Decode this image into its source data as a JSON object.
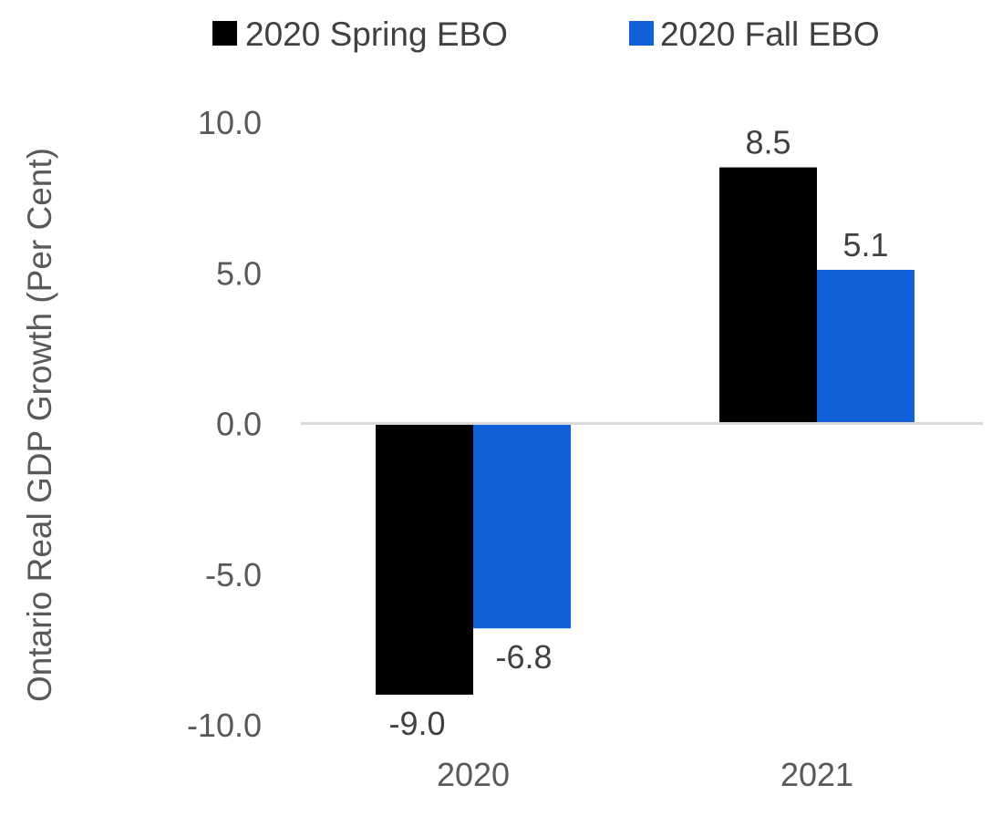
{
  "chart_data": {
    "type": "bar",
    "categories": [
      "2020",
      "2021"
    ],
    "series": [
      {
        "name": "2020 Spring EBO",
        "values": [
          -9.0,
          8.5
        ],
        "labels": [
          "-9.0",
          "8.5"
        ],
        "color": "#000000"
      },
      {
        "name": "2020 Fall EBO",
        "values": [
          -6.8,
          5.1
        ],
        "labels": [
          "-6.8",
          "5.1"
        ],
        "color": "#1160D7"
      }
    ],
    "ylabel": "Ontario Real GDP Growth (Per Cent)",
    "ylim": [
      -10,
      10
    ],
    "yticks": [
      "10.0",
      "5.0",
      "0.0",
      "-5.0",
      "-10.0"
    ],
    "ytick_values": [
      10,
      5,
      0,
      -5,
      -10
    ],
    "zero_line_color": "#D9D9D9",
    "legend_position": "top",
    "grid": false
  }
}
